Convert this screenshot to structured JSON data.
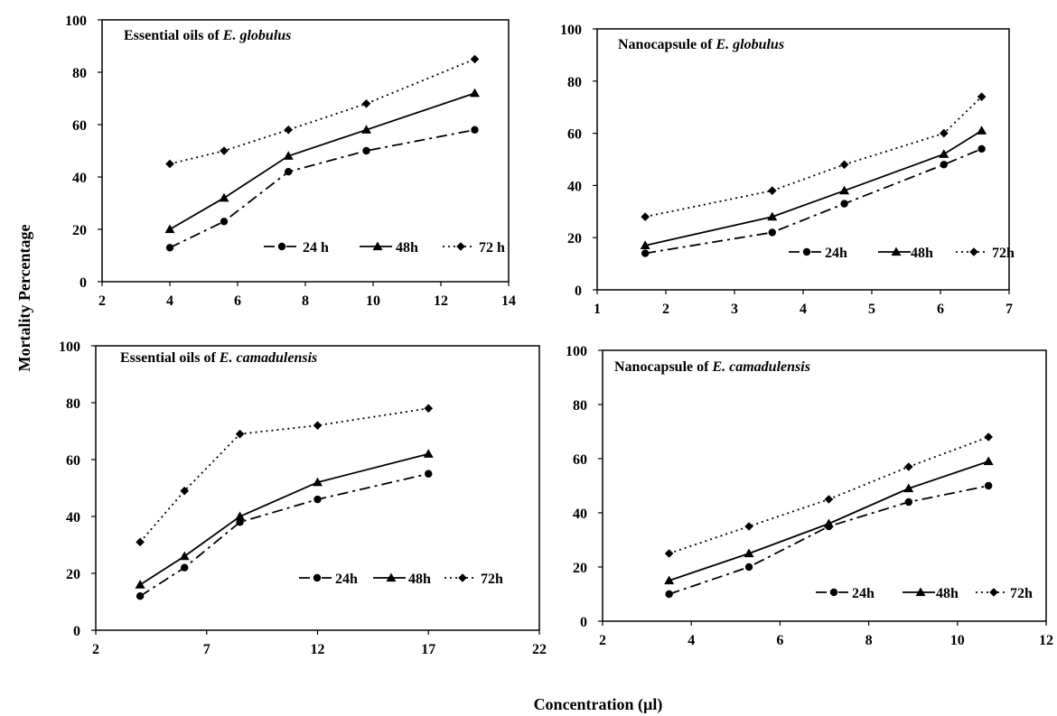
{
  "figure": {
    "ylabel": "Mortality Percentage",
    "xlabel": "Concentration (µl)"
  },
  "chart_data": [
    {
      "type": "line",
      "title_prefix": "Essential oils of ",
      "title_italic": "E. globulus",
      "xlim": [
        2,
        14
      ],
      "xticks": [
        2,
        4,
        6,
        8,
        10,
        12,
        14
      ],
      "ylim": [
        0,
        100
      ],
      "yticks": [
        0,
        20,
        40,
        60,
        80,
        100
      ],
      "x": [
        4,
        5.6,
        7.5,
        9.8,
        13
      ],
      "series": [
        {
          "name": "24 h",
          "style": "dashdot",
          "marker": "circle",
          "values": [
            13,
            23,
            42,
            50,
            58
          ]
        },
        {
          "name": "48h",
          "style": "solid",
          "marker": "triangle",
          "values": [
            20,
            32,
            48,
            58,
            72
          ]
        },
        {
          "name": "72 h",
          "style": "dotted",
          "marker": "diamond",
          "values": [
            45,
            50,
            58,
            68,
            85
          ]
        }
      ]
    },
    {
      "type": "line",
      "title_prefix": "Nanocapsule of ",
      "title_italic": "E. globulus",
      "xlim": [
        1,
        7
      ],
      "xticks": [
        1,
        2,
        3,
        4,
        5,
        6,
        7
      ],
      "ylim": [
        0,
        100
      ],
      "yticks": [
        0,
        20,
        40,
        60,
        80,
        100
      ],
      "x": [
        1.7,
        3.55,
        4.6,
        6.05,
        6.6
      ],
      "series": [
        {
          "name": "24h",
          "style": "dashdot",
          "marker": "circle",
          "values": [
            14,
            22,
            33,
            48,
            54
          ]
        },
        {
          "name": "48h",
          "style": "solid",
          "marker": "triangle",
          "values": [
            17,
            28,
            38,
            52,
            61
          ]
        },
        {
          "name": "72h",
          "style": "dotted",
          "marker": "diamond",
          "values": [
            28,
            38,
            48,
            60,
            74
          ]
        }
      ]
    },
    {
      "type": "line",
      "title_prefix": "Essential oils of ",
      "title_italic": "E. camadulensis",
      "xlim": [
        2,
        22
      ],
      "xticks": [
        2,
        7,
        12,
        17,
        22
      ],
      "ylim": [
        0,
        100
      ],
      "yticks": [
        0,
        20,
        40,
        60,
        80,
        100
      ],
      "x": [
        4,
        6,
        8.5,
        12,
        17
      ],
      "series": [
        {
          "name": "24h",
          "style": "dashdot",
          "marker": "circle",
          "values": [
            12,
            22,
            38,
            46,
            55
          ]
        },
        {
          "name": "48h",
          "style": "solid",
          "marker": "triangle",
          "values": [
            16,
            26,
            40,
            52,
            62
          ]
        },
        {
          "name": "72h",
          "style": "dotted",
          "marker": "diamond",
          "values": [
            31,
            49,
            69,
            72,
            78
          ]
        }
      ]
    },
    {
      "type": "line",
      "title_prefix": "Nanocapsule of ",
      "title_italic": "E. camadulensis",
      "xlim": [
        2,
        12
      ],
      "xticks": [
        2,
        4,
        6,
        8,
        10,
        12
      ],
      "ylim": [
        0,
        100
      ],
      "yticks": [
        0,
        20,
        40,
        60,
        80,
        100
      ],
      "x": [
        3.5,
        5.3,
        7.1,
        8.9,
        10.7
      ],
      "series": [
        {
          "name": "24h",
          "style": "dashdot",
          "marker": "circle",
          "values": [
            10,
            20,
            35,
            44,
            50
          ]
        },
        {
          "name": "48h",
          "style": "solid",
          "marker": "triangle",
          "values": [
            15,
            25,
            36,
            49,
            59
          ]
        },
        {
          "name": "72h",
          "style": "dotted",
          "marker": "diamond",
          "values": [
            25,
            35,
            45,
            57,
            68
          ]
        }
      ]
    }
  ]
}
